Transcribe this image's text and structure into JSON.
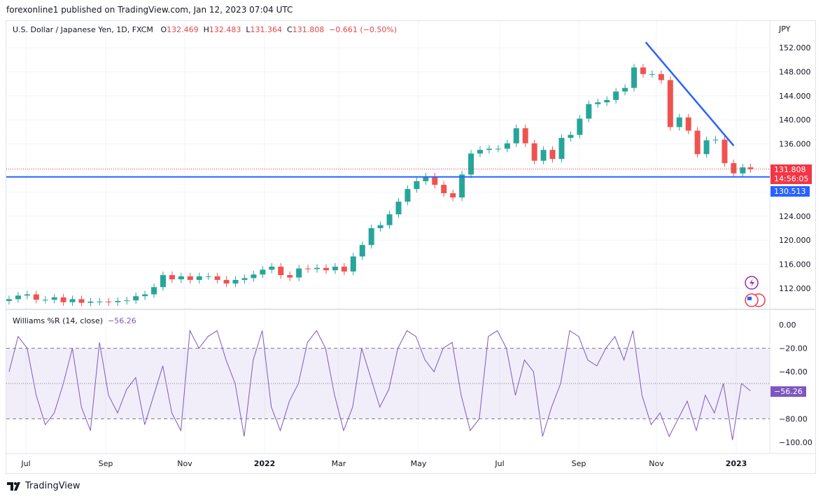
{
  "header": {
    "published": "forexonline1 published on TradingView.com, Jan 12, 2023 07:04 UTC"
  },
  "legend": {
    "symbol": "U.S. Dollar / Japanese Yen, 1D, FXCM",
    "o_label": "O",
    "o": "132.469",
    "h_label": "H",
    "h": "132.483",
    "l_label": "L",
    "l": "131.364",
    "c_label": "C",
    "c": "131.808",
    "change": "−0.661 (−0.50%)"
  },
  "price_axis": {
    "currency": "JPY",
    "ticks": [
      "152.000",
      "148.000",
      "144.000",
      "140.000",
      "136.000",
      "124.000",
      "120.000",
      "116.000",
      "112.000"
    ]
  },
  "last_price": {
    "value": "131.808",
    "countdown": "14:56:05",
    "color": "#f23645"
  },
  "line_label": {
    "value": "130.513",
    "color": "#2962ff"
  },
  "williams": {
    "title": "Williams %R (14, close)",
    "value": "−56.26",
    "ticks": [
      "0.00",
      "−20.00",
      "−40.00",
      "−80.00",
      "−100.00"
    ],
    "color": "#7e57c2",
    "upper": -20,
    "lower": -80,
    "mid": -50
  },
  "time_axis": [
    "Jul",
    "Sep",
    "Nov",
    "2022",
    "Mar",
    "May",
    "Jul",
    "Sep",
    "Nov",
    "2023"
  ],
  "footer": {
    "brand": "TradingView"
  },
  "chart_data": {
    "type": "candlestick",
    "symbol": "USDJPY",
    "interval": "weekly sample of daily chart",
    "ylim": [
      108,
      154
    ],
    "colors": {
      "up": "#26a69a",
      "down": "#ef5350"
    },
    "dates": [
      "2021-06-18",
      "2021-06-25",
      "2021-07-02",
      "2021-07-09",
      "2021-07-16",
      "2021-07-23",
      "2021-07-30",
      "2021-08-06",
      "2021-08-13",
      "2021-08-20",
      "2021-08-27",
      "2021-09-03",
      "2021-09-10",
      "2021-09-17",
      "2021-09-24",
      "2021-10-01",
      "2021-10-08",
      "2021-10-15",
      "2021-10-22",
      "2021-10-29",
      "2021-11-05",
      "2021-11-12",
      "2021-11-19",
      "2021-11-26",
      "2021-12-03",
      "2021-12-10",
      "2021-12-17",
      "2021-12-24",
      "2021-12-31",
      "2022-01-07",
      "2022-01-14",
      "2022-01-21",
      "2022-01-28",
      "2022-02-04",
      "2022-02-11",
      "2022-02-18",
      "2022-02-25",
      "2022-03-04",
      "2022-03-11",
      "2022-03-18",
      "2022-03-25",
      "2022-04-01",
      "2022-04-08",
      "2022-04-15",
      "2022-04-22",
      "2022-04-29",
      "2022-05-06",
      "2022-05-13",
      "2022-05-20",
      "2022-05-27",
      "2022-06-03",
      "2022-06-10",
      "2022-06-17",
      "2022-06-24",
      "2022-07-01",
      "2022-07-08",
      "2022-07-15",
      "2022-07-22",
      "2022-07-29",
      "2022-08-05",
      "2022-08-12",
      "2022-08-19",
      "2022-08-26",
      "2022-09-02",
      "2022-09-09",
      "2022-09-16",
      "2022-09-23",
      "2022-09-30",
      "2022-10-07",
      "2022-10-14",
      "2022-10-21",
      "2022-10-28",
      "2022-11-04",
      "2022-11-11",
      "2022-11-18",
      "2022-11-25",
      "2022-12-02",
      "2022-12-09",
      "2022-12-16",
      "2022-12-23",
      "2022-12-30",
      "2023-01-06",
      "2023-01-12"
    ],
    "close": [
      110.2,
      110.8,
      111.0,
      110.1,
      110.1,
      110.5,
      109.7,
      110.2,
      109.6,
      109.8,
      109.8,
      109.7,
      109.9,
      110.0,
      110.7,
      111.0,
      112.2,
      114.2,
      113.5,
      114.0,
      113.4,
      114.0,
      114.0,
      113.4,
      112.8,
      113.4,
      113.7,
      114.3,
      115.1,
      115.6,
      114.2,
      113.8,
      115.3,
      115.2,
      115.4,
      115.0,
      115.6,
      114.8,
      117.3,
      119.2,
      122.0,
      122.5,
      124.3,
      126.4,
      128.5,
      129.8,
      130.6,
      129.2,
      127.8,
      127.1,
      130.9,
      134.4,
      135.0,
      135.2,
      135.2,
      136.1,
      138.6,
      136.1,
      133.2,
      135.0,
      133.5,
      137.0,
      137.5,
      140.2,
      142.6,
      142.9,
      143.3,
      144.7,
      145.3,
      148.7,
      147.6,
      147.6,
      146.6,
      138.8,
      140.4,
      138.2,
      134.3,
      136.6,
      136.7,
      132.8,
      131.1,
      132.1,
      131.808
    ],
    "trendlines": [
      {
        "kind": "horizontal",
        "price": 130.513,
        "color": "#2962ff"
      },
      {
        "kind": "segment",
        "from": [
          "2022-10-23",
          152.9
        ],
        "to": [
          "2022-12-30",
          135.7
        ],
        "color": "#2962ff"
      }
    ],
    "williams_r": [
      -40,
      -10,
      -20,
      -60,
      -85,
      -75,
      -50,
      -20,
      -70,
      -90,
      -15,
      -60,
      -75,
      -55,
      -45,
      -85,
      -60,
      -35,
      -75,
      -90,
      -5,
      -20,
      -10,
      -5,
      -30,
      -50,
      -95,
      -30,
      -5,
      -70,
      -90,
      -65,
      -50,
      -15,
      -5,
      -20,
      -60,
      -90,
      -70,
      -20,
      -45,
      -70,
      -55,
      -20,
      -5,
      -10,
      -30,
      -40,
      -20,
      -15,
      -60,
      -90,
      -80,
      -10,
      -5,
      -20,
      -60,
      -30,
      -40,
      -95,
      -70,
      -50,
      -5,
      -10,
      -30,
      -35,
      -20,
      -10,
      -30,
      -5,
      -60,
      -85,
      -75,
      -95,
      -80,
      -65,
      -90,
      -60,
      -75,
      -50,
      -98,
      -50,
      -56.26
    ]
  }
}
